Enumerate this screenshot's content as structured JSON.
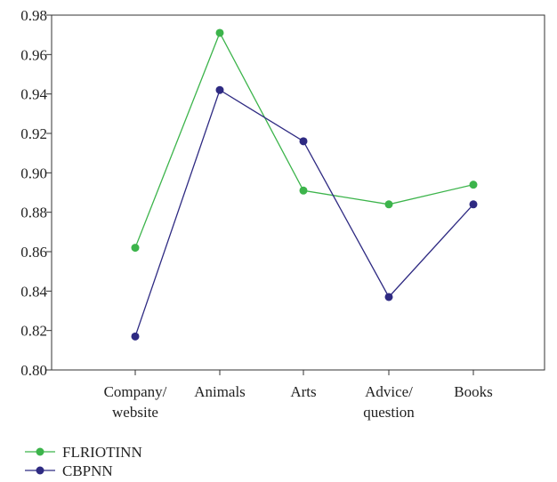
{
  "chart_data": {
    "type": "line",
    "categories": [
      [
        "Company/",
        "website"
      ],
      [
        "Animals"
      ],
      [
        "Arts"
      ],
      [
        "Advice/",
        "question"
      ],
      [
        "Books"
      ]
    ],
    "series": [
      {
        "name": "FLRIOTINN",
        "color": "#3cb44b",
        "values": [
          0.862,
          0.971,
          0.891,
          0.884,
          0.894
        ]
      },
      {
        "name": "CBPNN",
        "color": "#2e2a82",
        "values": [
          0.817,
          0.942,
          0.916,
          0.837,
          0.884
        ]
      }
    ],
    "ylim": [
      0.8,
      0.98
    ],
    "yticks": [
      "0.80",
      "0.82",
      "0.84",
      "0.86",
      "0.88",
      "0.90",
      "0.92",
      "0.94",
      "0.96",
      "0.98"
    ],
    "title": "",
    "xlabel": "",
    "ylabel": "",
    "grid": false,
    "legend_position": "bottom-left"
  }
}
